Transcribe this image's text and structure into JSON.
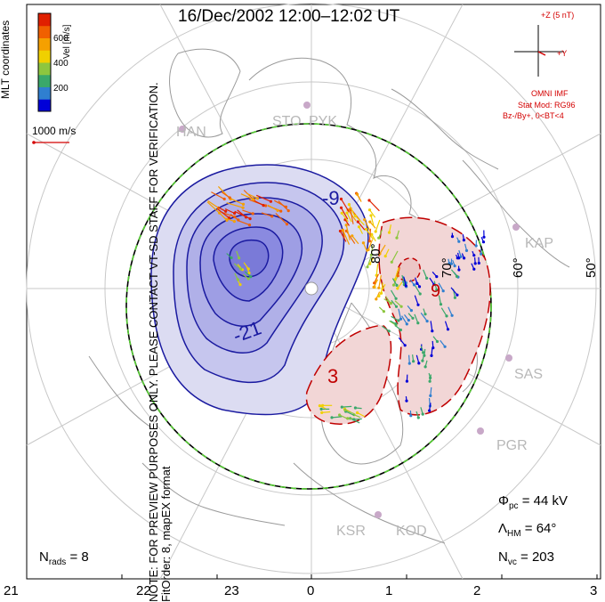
{
  "title": "16/Dec/2002 12:00–12:02 UT",
  "side_note_line1": "NOTE: FOR PREVIEW PURPOSES ONLY. PLEASE CONTACT VT-SD STAFF FOR VERIFICATION.",
  "side_note_line2": "FitOrder: 8, mapEX format",
  "coords_label": "MLT coordinates",
  "colorbar": {
    "label": "Vel [m/s]",
    "ticks": [
      "600",
      "400",
      "200"
    ],
    "colors": [
      "#0000d8",
      "#2f7fd0",
      "#3aa86a",
      "#8dc63f",
      "#f0d000",
      "#f5a000",
      "#f06000",
      "#e02000"
    ]
  },
  "velocity_scale": "1000 m/s",
  "imf": {
    "axis_z": "+Z (5 nT)",
    "axis_y": "+Y",
    "source": "OMNI IMF",
    "model": "Stat Mod: RG96",
    "condition": "Bz-/By+, 0<BT<4"
  },
  "stats": {
    "phi_symbol": "Φ",
    "phi_sub": "pc",
    "phi_value": "= 44 kV",
    "lambda_symbol": "Λ",
    "lambda_sub": "HM",
    "lambda_value": "= 64°",
    "nrads_symbol": "N",
    "nrads_sub": "rads",
    "nrads_value": "= 8",
    "nvc_symbol": "N",
    "nvc_sub": "vc",
    "nvc_value": "= 203"
  },
  "radar_sites": [
    "HAN",
    "STO",
    "PYK",
    "KAP",
    "SAS",
    "PGR",
    "KSR",
    "KOD"
  ],
  "latitude_labels": [
    "80°",
    "70°",
    "60°",
    "50°"
  ],
  "mlt_ticks": [
    "21",
    "22",
    "23",
    "0",
    "1",
    "2",
    "3"
  ],
  "contour_labels": [
    "-9",
    "-21",
    "3",
    "9"
  ],
  "colors": {
    "negative_fill_light": "#dcdcf2",
    "negative_fill_mid": "#b0b0e8",
    "negative_fill_dark": "#8a8ae0",
    "negative_line": "#1a1aa0",
    "positive_fill": "#f2d6d6",
    "positive_line": "#c00000",
    "boundary_green": "#55cc33"
  }
}
